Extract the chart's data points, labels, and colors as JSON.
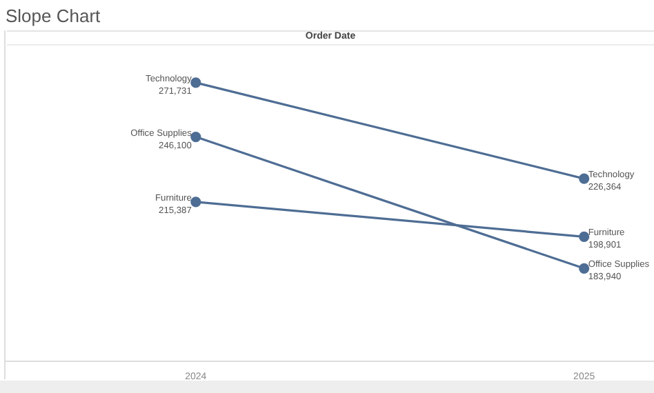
{
  "chart_data": {
    "type": "line",
    "title": "Slope Chart",
    "xlabel": "Order Date",
    "categories": [
      "2024",
      "2025"
    ],
    "marker": "circle",
    "series": [
      {
        "name": "Technology",
        "color": "#4e6d94",
        "values": [
          271731,
          226364
        ],
        "value_labels": [
          "271,731",
          "226,364"
        ]
      },
      {
        "name": "Office Supplies",
        "color": "#4e6d94",
        "values": [
          246100,
          183940
        ],
        "value_labels": [
          "246,100",
          "183,940"
        ]
      },
      {
        "name": "Furniture",
        "color": "#4e6d94",
        "values": [
          215387,
          198901
        ],
        "value_labels": [
          "215,387",
          "198,901"
        ]
      }
    ]
  }
}
